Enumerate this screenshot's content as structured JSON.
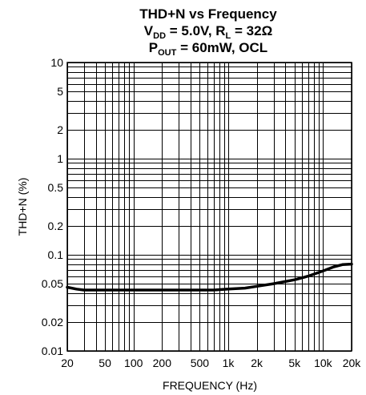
{
  "chart_data": {
    "type": "line",
    "title": {
      "line1": "THD+N vs Frequency",
      "line2": {
        "v": "V",
        "v_sub": "DD",
        "eq1": " = 5.0V, R",
        "r_sub": "L",
        "eq2": " = 32Ω"
      },
      "line3": {
        "p": "P",
        "p_sub": "OUT",
        "eq": " = 60mW, OCL"
      }
    },
    "xlabel": "FREQUENCY (Hz)",
    "ylabel": "THD+N (%)",
    "x_scale": "log",
    "y_scale": "log",
    "xlim": [
      20,
      20000
    ],
    "ylim": [
      0.01,
      10
    ],
    "x_ticks": [
      {
        "value": 20,
        "label": "20"
      },
      {
        "value": 50,
        "label": "50"
      },
      {
        "value": 100,
        "label": "100"
      },
      {
        "value": 200,
        "label": "200"
      },
      {
        "value": 500,
        "label": "500"
      },
      {
        "value": 1000,
        "label": "1k"
      },
      {
        "value": 2000,
        "label": "2k"
      },
      {
        "value": 5000,
        "label": "5k"
      },
      {
        "value": 10000,
        "label": "10k"
      },
      {
        "value": 20000,
        "label": "20k"
      }
    ],
    "y_ticks": [
      {
        "value": 10,
        "label": "10"
      },
      {
        "value": 5,
        "label": "5"
      },
      {
        "value": 2,
        "label": "2"
      },
      {
        "value": 1,
        "label": "1"
      },
      {
        "value": 0.5,
        "label": "0.5"
      },
      {
        "value": 0.2,
        "label": "0.2"
      },
      {
        "value": 0.1,
        "label": "0.1"
      },
      {
        "value": 0.05,
        "label": "0.05"
      },
      {
        "value": 0.02,
        "label": "0.02"
      },
      {
        "value": 0.01,
        "label": "0.01"
      }
    ],
    "grid": true,
    "series": [
      {
        "color": "#000000",
        "x": [
          20,
          25,
          30,
          40,
          50,
          70,
          100,
          150,
          200,
          300,
          500,
          700,
          1000,
          1500,
          2000,
          3000,
          5000,
          7000,
          10000,
          13000,
          16000,
          20000
        ],
        "y": [
          0.046,
          0.044,
          0.043,
          0.043,
          0.043,
          0.043,
          0.043,
          0.043,
          0.043,
          0.043,
          0.043,
          0.043,
          0.044,
          0.045,
          0.047,
          0.05,
          0.055,
          0.06,
          0.068,
          0.075,
          0.079,
          0.08
        ]
      }
    ]
  }
}
